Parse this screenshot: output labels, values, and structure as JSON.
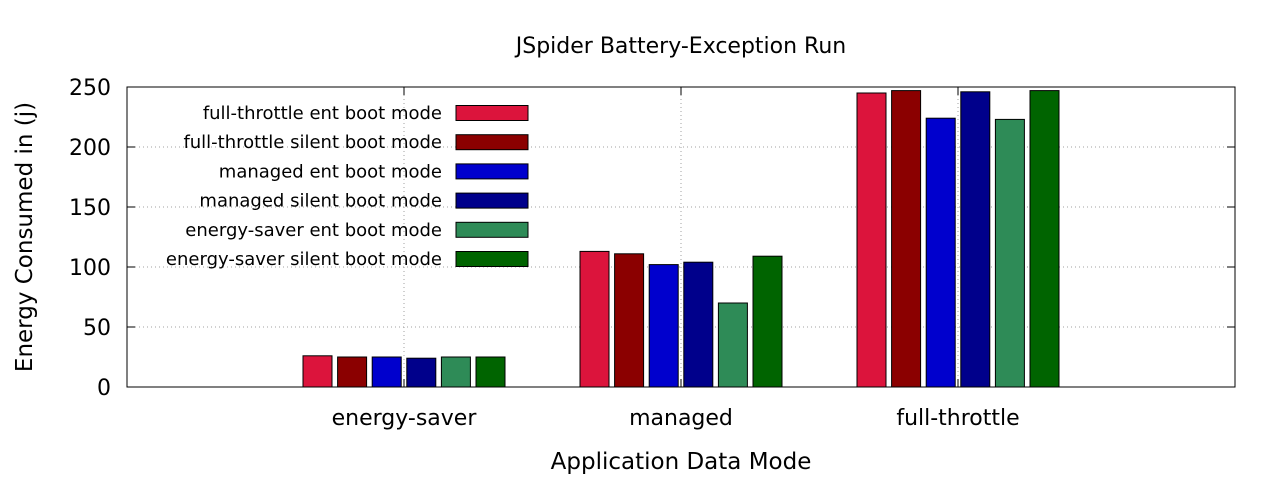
{
  "chart_data": {
    "type": "bar",
    "title": "JSpider Battery-Exception Run",
    "xlabel": "Application Data Mode",
    "ylabel": "Energy Consumed in (j)",
    "ylim": [
      0,
      250
    ],
    "yticks": [
      0,
      50,
      100,
      150,
      200,
      250
    ],
    "grid": true,
    "legend_position": "top-left",
    "categories": [
      "energy-saver",
      "managed",
      "full-throttle"
    ],
    "series": [
      {
        "name": "full-throttle ent boot mode",
        "color": "#dc143c",
        "values": [
          26,
          113,
          245
        ]
      },
      {
        "name": "full-throttle silent boot mode",
        "color": "#8b0000",
        "values": [
          25,
          111,
          247
        ]
      },
      {
        "name": "managed ent boot mode",
        "color": "#0000cd",
        "values": [
          25,
          102,
          224
        ]
      },
      {
        "name": "managed silent  boot mode",
        "color": "#00008b",
        "values": [
          24,
          104,
          246
        ]
      },
      {
        "name": "energy-saver ent boot mode",
        "color": "#2e8b57",
        "values": [
          25,
          70,
          223
        ]
      },
      {
        "name": "energy-saver silent boot mode",
        "color": "#006400",
        "values": [
          25,
          109,
          247
        ]
      }
    ]
  }
}
